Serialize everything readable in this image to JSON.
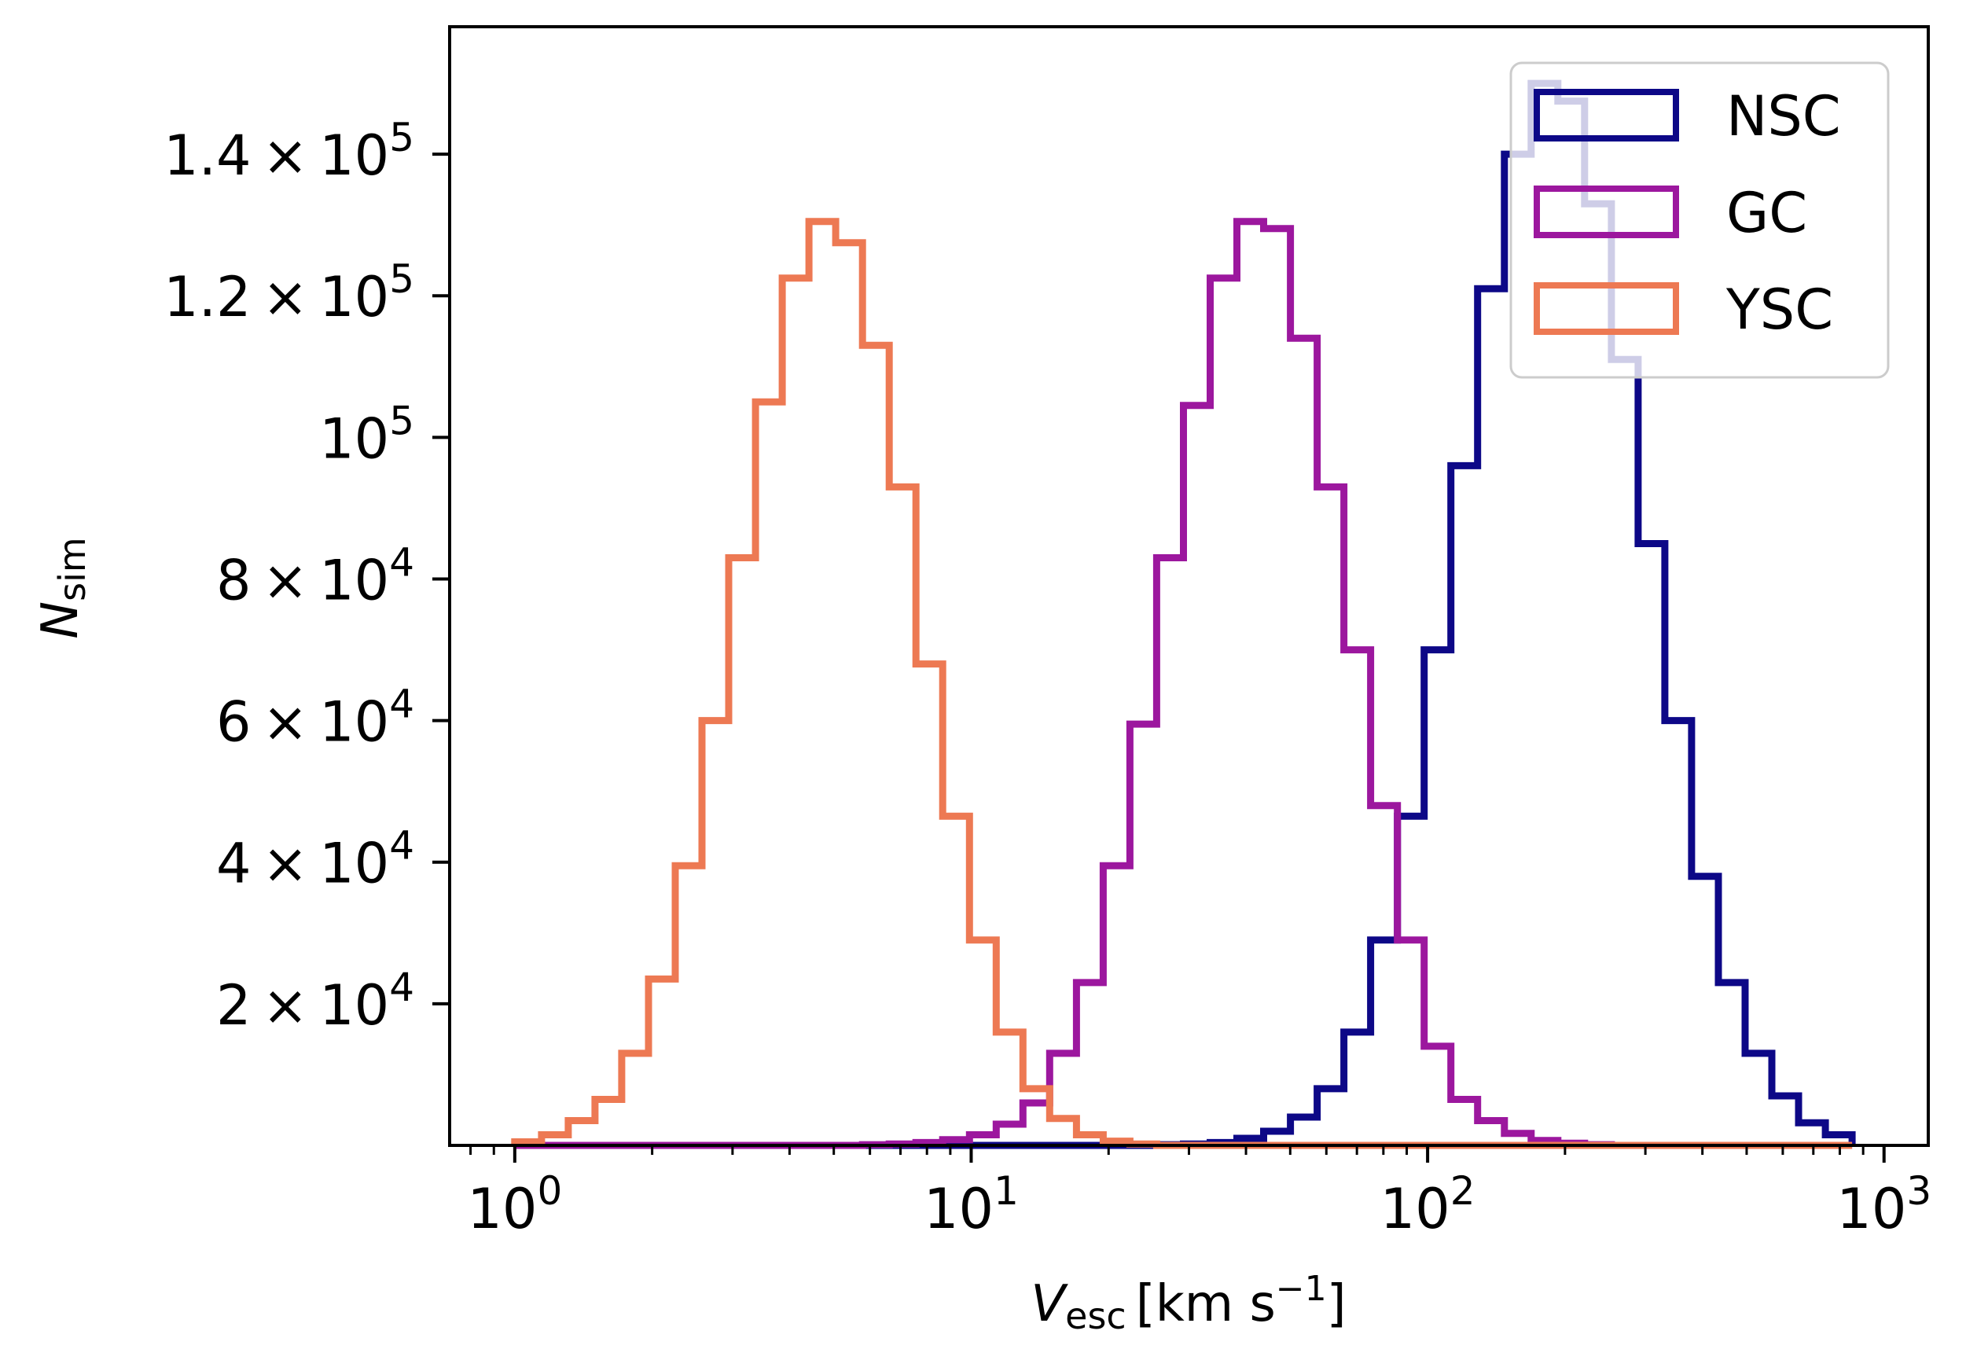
{
  "chart_data": {
    "type": "histogram-step",
    "xscale": "log",
    "xlim": [
      0.72,
      1250
    ],
    "ylim": [
      0,
      158000
    ],
    "xlabel": {
      "main": "V",
      "sub": "esc",
      "unit_open": "[km s",
      "unit_exp": "−1",
      "unit_close": "]"
    },
    "ylabel": {
      "main": "N",
      "sub": "sim"
    },
    "x_ticks": [
      {
        "value": 1,
        "base": "10",
        "exp": "0"
      },
      {
        "value": 10,
        "base": "10",
        "exp": "1"
      },
      {
        "value": 100,
        "base": "10",
        "exp": "2"
      },
      {
        "value": 1000,
        "base": "10",
        "exp": "3"
      }
    ],
    "y_ticks": [
      {
        "value": 20000,
        "mant": "2",
        "times": "×",
        "base": "10",
        "exp": "4"
      },
      {
        "value": 40000,
        "mant": "4",
        "times": "×",
        "base": "10",
        "exp": "4"
      },
      {
        "value": 60000,
        "mant": "6",
        "times": "×",
        "base": "10",
        "exp": "4"
      },
      {
        "value": 80000,
        "mant": "8",
        "times": "×",
        "base": "10",
        "exp": "4"
      },
      {
        "value": 100000,
        "mant": "",
        "times": "",
        "base": "10",
        "exp": "5"
      },
      {
        "value": 120000,
        "mant": "1.2",
        "times": "×",
        "base": "10",
        "exp": "5"
      },
      {
        "value": 140000,
        "mant": "1.4",
        "times": "×",
        "base": "10",
        "exp": "5"
      }
    ],
    "bins": {
      "log_start": 0,
      "log_step": 0.0586,
      "count": 50
    },
    "series": [
      {
        "name": "NSC",
        "color": "#0d0887",
        "values": [
          0,
          0,
          0,
          0,
          0,
          0,
          0,
          0,
          0,
          0,
          0,
          0,
          0,
          0,
          0,
          0,
          0,
          0,
          0,
          0,
          0,
          0,
          0,
          0,
          100,
          200,
          400,
          1000,
          2000,
          4000,
          8000,
          16000,
          29000,
          46500,
          70000,
          96000,
          121000,
          140000,
          150000,
          147500,
          133000,
          111000,
          85000,
          60000,
          38000,
          23000,
          13000,
          7000,
          3200,
          1500
        ]
      },
      {
        "name": "GC",
        "color": "#9c179e",
        "values": [
          0,
          0,
          0,
          0,
          0,
          0,
          0,
          0,
          0,
          0,
          0,
          0,
          0,
          100,
          200,
          400,
          800,
          1500,
          3000,
          6000,
          13000,
          23000,
          39500,
          59500,
          83000,
          104500,
          122500,
          130500,
          129500,
          114000,
          93000,
          70000,
          48000,
          29000,
          14000,
          6500,
          3500,
          1700,
          700,
          300,
          100,
          0,
          0,
          0,
          0,
          0,
          0,
          0,
          0,
          0
        ]
      },
      {
        "name": "YSC",
        "color": "#ed7953",
        "values": [
          500,
          1500,
          3500,
          6500,
          13000,
          23500,
          39500,
          60000,
          83000,
          105000,
          122500,
          130500,
          127500,
          113000,
          93000,
          68000,
          46500,
          29000,
          16000,
          8000,
          3800,
          1500,
          600,
          200,
          0,
          0,
          0,
          0,
          0,
          0,
          0,
          0,
          0,
          0,
          0,
          0,
          0,
          0,
          0,
          0,
          0,
          0,
          0,
          0,
          0,
          0,
          0,
          0,
          0,
          0
        ]
      }
    ],
    "legend": {
      "position": "top-right",
      "entries": [
        "NSC",
        "GC",
        "YSC"
      ]
    }
  }
}
